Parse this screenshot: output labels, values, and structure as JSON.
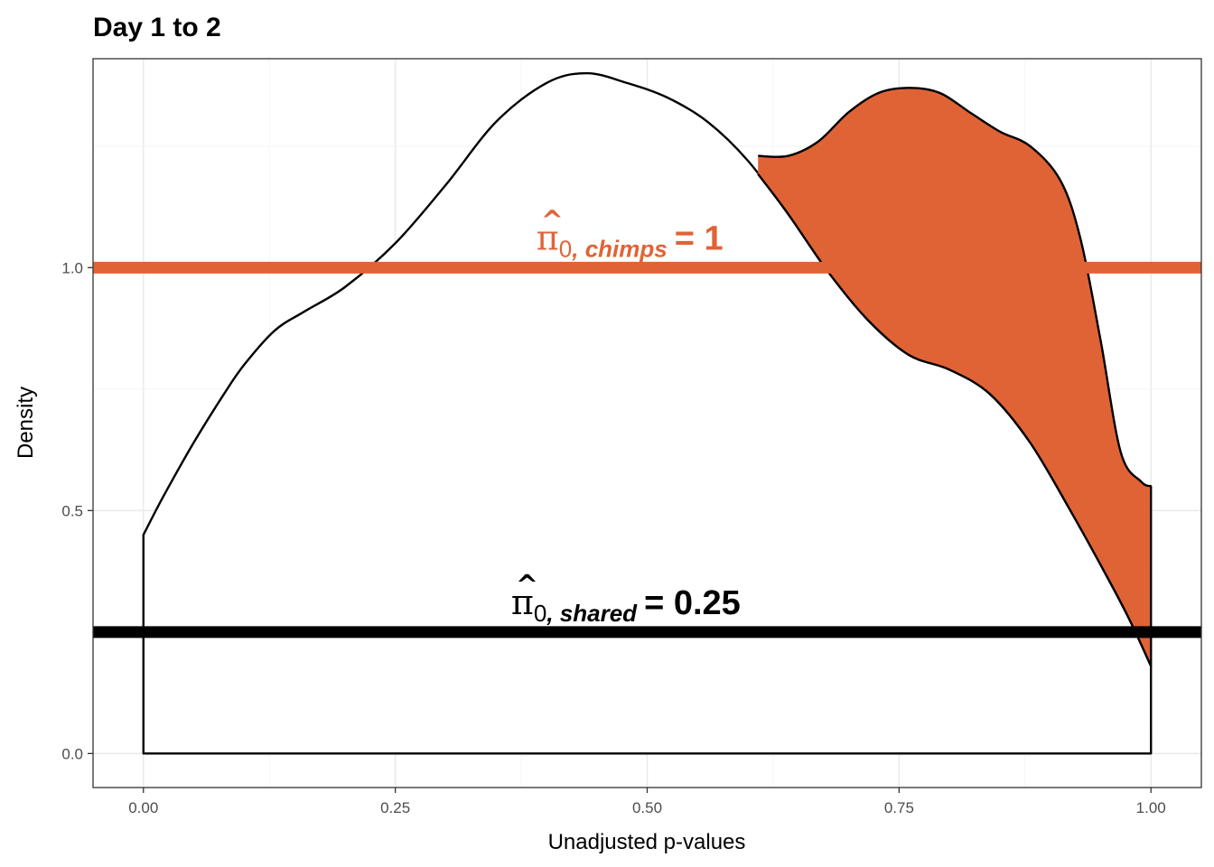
{
  "chart_data": {
    "type": "area",
    "title": "Day 1 to 2",
    "xlabel": "Unadjusted p-values",
    "ylabel": "Density",
    "xlim": [
      -0.05,
      1.05
    ],
    "ylim": [
      -0.07,
      1.43
    ],
    "x_ticks": [
      0.0,
      0.25,
      0.5,
      0.75,
      1.0
    ],
    "x_tick_labels": [
      "0.00",
      "0.25",
      "0.50",
      "0.75",
      "1.00"
    ],
    "y_ticks": [
      0.0,
      0.5,
      1.0
    ],
    "y_tick_labels": [
      "0.0",
      "0.5",
      "1.0"
    ],
    "grid": true,
    "series": [
      {
        "color": "#ffffff",
        "x": [
          0.0,
          0.02,
          0.05,
          0.08,
          0.1,
          0.13,
          0.16,
          0.2,
          0.25,
          0.3,
          0.35,
          0.4,
          0.44,
          0.48,
          0.52,
          0.56,
          0.6,
          0.64,
          0.68,
          0.72,
          0.76,
          0.8,
          0.84,
          0.88,
          0.92,
          0.96,
          0.98,
          1.0
        ],
        "y": [
          0.45,
          0.53,
          0.64,
          0.74,
          0.8,
          0.87,
          0.91,
          0.96,
          1.05,
          1.17,
          1.3,
          1.38,
          1.4,
          1.38,
          1.35,
          1.3,
          1.22,
          1.11,
          0.99,
          0.89,
          0.82,
          0.79,
          0.74,
          0.64,
          0.5,
          0.35,
          0.27,
          0.18
        ]
      },
      {
        "color": "#e06336",
        "x": [
          0.61,
          0.64,
          0.67,
          0.7,
          0.73,
          0.76,
          0.79,
          0.82,
          0.85,
          0.88,
          0.91,
          0.93,
          0.95,
          0.97,
          0.99,
          1.0
        ],
        "y": [
          1.23,
          1.23,
          1.26,
          1.32,
          1.36,
          1.37,
          1.36,
          1.32,
          1.28,
          1.25,
          1.18,
          1.06,
          0.85,
          0.62,
          0.56,
          0.55
        ]
      }
    ],
    "hlines": [
      {
        "y": 1.0,
        "color": "#e06336",
        "label_pi": "π",
        "label_hat": "^",
        "label_zero": "0",
        "label_sub": ", chimps",
        "label_eq": "= 1"
      },
      {
        "y": 0.25,
        "color": "#000000",
        "label_pi": "π",
        "label_hat": "^",
        "label_zero": "0",
        "label_sub": ", shared",
        "label_eq": "= 0.25"
      }
    ]
  }
}
